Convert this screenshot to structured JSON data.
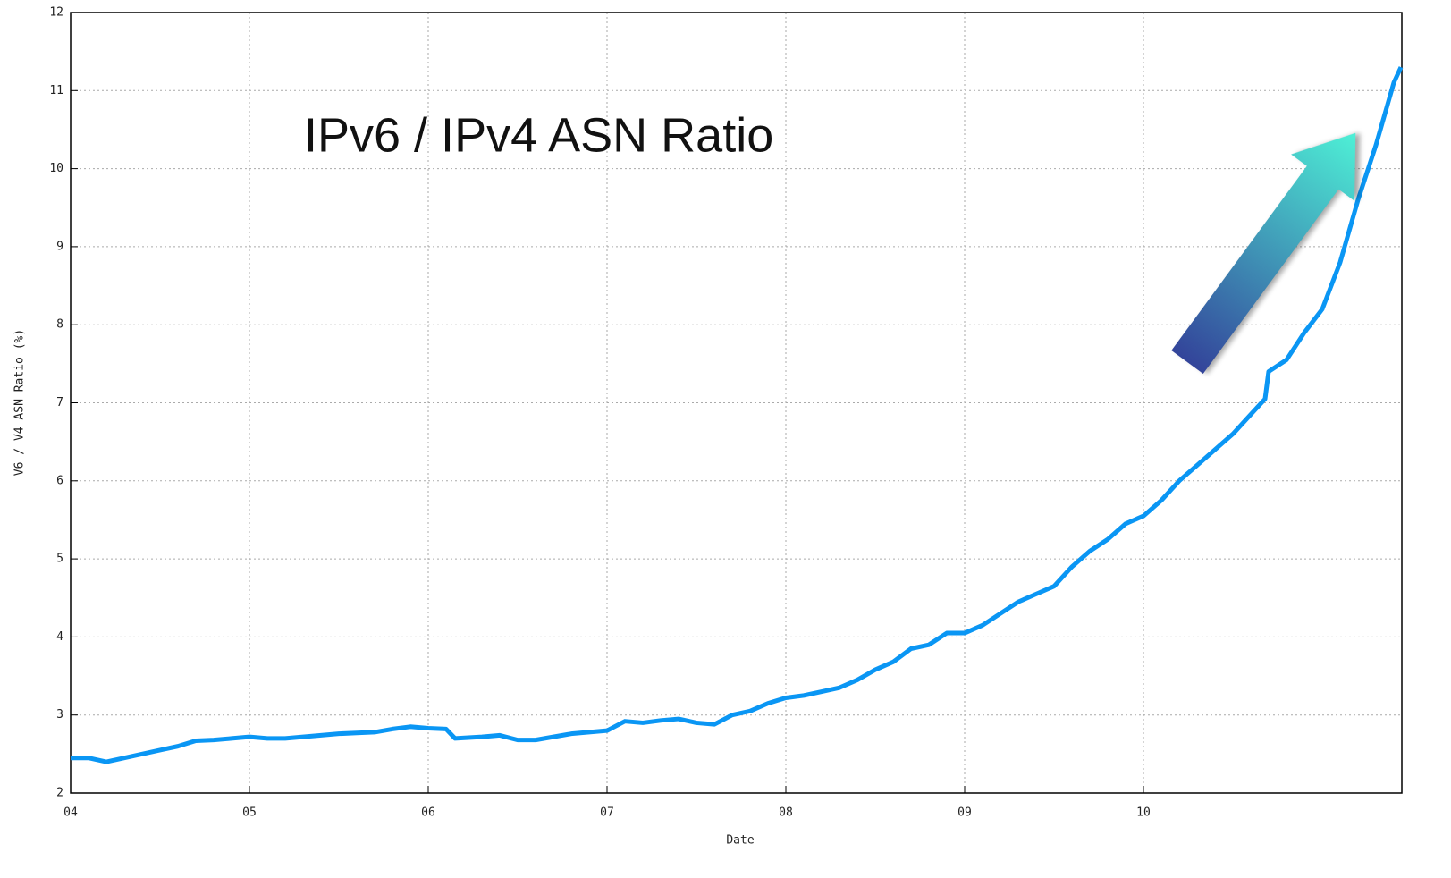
{
  "chart_data": {
    "type": "line",
    "title": "IPv6 / IPv4 ASN Ratio",
    "x_label": "Date",
    "y_label": "V6 / V4 ASN Ratio (%)",
    "xlim": [
      4,
      11.445
    ],
    "xticks": [
      {
        "value": 4,
        "label": "04"
      },
      {
        "value": 5,
        "label": "05"
      },
      {
        "value": 6,
        "label": "06"
      },
      {
        "value": 7,
        "label": "07"
      },
      {
        "value": 8,
        "label": "08"
      },
      {
        "value": 9,
        "label": "09"
      },
      {
        "value": 10,
        "label": "10"
      }
    ],
    "ylim": [
      2,
      12
    ],
    "yticks": [
      2,
      3,
      4,
      5,
      6,
      7,
      8,
      9,
      10,
      11,
      12
    ],
    "grid": true,
    "series": [
      {
        "color": "#0a96f4",
        "x": [
          4.0,
          4.1,
          4.2,
          4.3,
          4.4,
          4.5,
          4.6,
          4.7,
          4.8,
          4.9,
          5.0,
          5.1,
          5.2,
          5.3,
          5.4,
          5.5,
          5.6,
          5.7,
          5.8,
          5.9,
          6.0,
          6.1,
          6.15,
          6.3,
          6.4,
          6.5,
          6.6,
          6.7,
          6.8,
          6.9,
          7.0,
          7.1,
          7.2,
          7.3,
          7.4,
          7.5,
          7.6,
          7.7,
          7.8,
          7.9,
          8.0,
          8.1,
          8.2,
          8.3,
          8.4,
          8.5,
          8.6,
          8.7,
          8.8,
          8.9,
          9.0,
          9.1,
          9.2,
          9.3,
          9.4,
          9.5,
          9.6,
          9.7,
          9.8,
          9.9,
          10.0,
          10.1,
          10.2,
          10.3,
          10.4,
          10.5,
          10.6,
          10.68,
          10.7,
          10.8,
          10.9,
          11.0,
          11.1,
          11.2,
          11.3,
          11.4,
          11.44
        ],
        "values": [
          2.45,
          2.45,
          2.4,
          2.45,
          2.5,
          2.55,
          2.6,
          2.67,
          2.68,
          2.7,
          2.72,
          2.7,
          2.7,
          2.72,
          2.74,
          2.76,
          2.77,
          2.78,
          2.82,
          2.85,
          2.83,
          2.82,
          2.7,
          2.72,
          2.74,
          2.68,
          2.68,
          2.72,
          2.76,
          2.78,
          2.8,
          2.92,
          2.9,
          2.93,
          2.95,
          2.9,
          2.88,
          3.0,
          3.05,
          3.15,
          3.22,
          3.25,
          3.3,
          3.35,
          3.45,
          3.58,
          3.68,
          3.85,
          3.9,
          4.05,
          4.05,
          4.15,
          4.3,
          4.45,
          4.55,
          4.65,
          4.9,
          5.1,
          5.25,
          5.45,
          5.55,
          5.75,
          6.0,
          6.2,
          6.4,
          6.6,
          6.85,
          7.05,
          7.4,
          7.55,
          7.9,
          8.2,
          8.8,
          9.6,
          10.3,
          11.1,
          11.3
        ]
      }
    ]
  }
}
